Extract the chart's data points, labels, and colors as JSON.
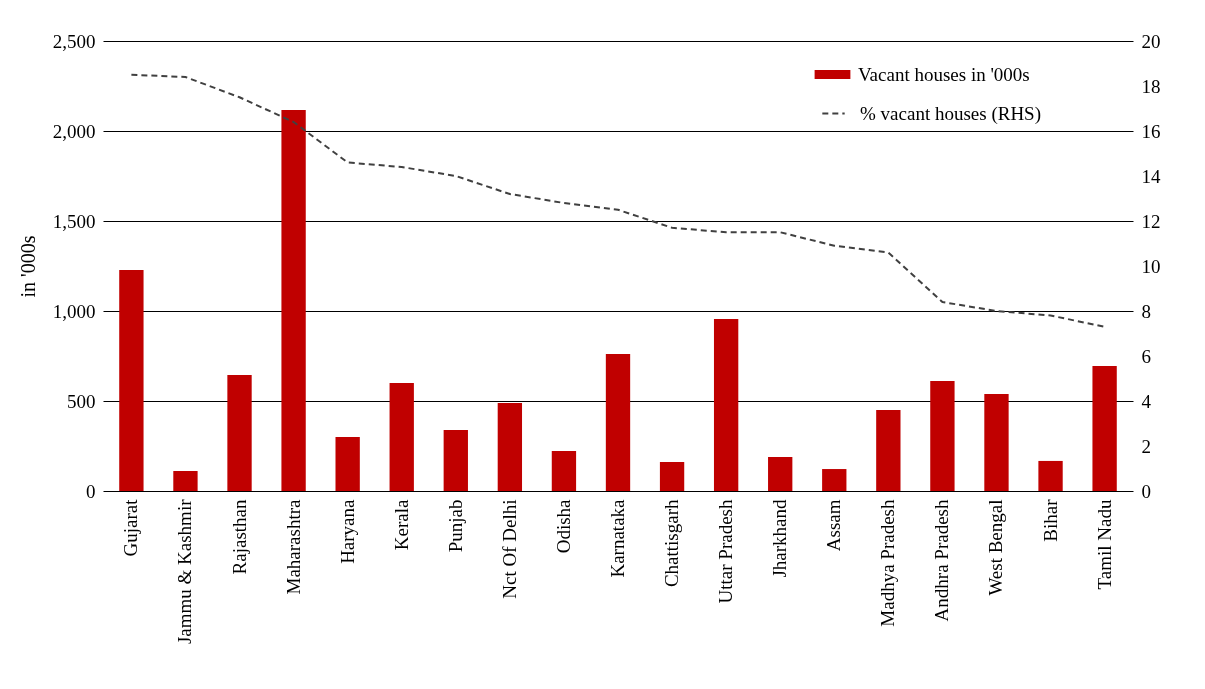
{
  "chart_data": {
    "type": "bar",
    "ylabel": "in '000s",
    "categories": [
      "Gujarat",
      "Jammu & Kashmir",
      "Rajasthan",
      "Maharashtra",
      "Haryana",
      "Kerala",
      "Punjab",
      "Nct Of Delhi",
      "Odisha",
      "Karnataka",
      "Chattisgarh",
      "Uttar Pradesh",
      "Jharkhand",
      "Assam",
      "Madhya Pradesh",
      "Andhra Pradesh",
      "West Bengal",
      "Bihar",
      "Tamil Nadu"
    ],
    "series": [
      {
        "name": "Vacant houses in '000s",
        "type": "bar",
        "color": "#c00000",
        "values": [
          1228,
          111,
          644,
          2117,
          300,
          600,
          339,
          489,
          222,
          761,
          161,
          956,
          189,
          122,
          450,
          611,
          539,
          167,
          694
        ]
      },
      {
        "name": "% vacant houses (RHS)",
        "type": "line",
        "axis": "y2",
        "color": "#404040",
        "line_style": "dashed",
        "values": [
          18.5,
          18.4,
          17.5,
          16.4,
          14.6,
          14.4,
          14.0,
          13.2,
          12.8,
          12.5,
          11.7,
          11.5,
          11.5,
          10.9,
          10.6,
          8.4,
          8.0,
          7.8,
          7.3
        ]
      }
    ],
    "ylim": [
      0,
      2500
    ],
    "yticks": [
      0,
      500,
      {
        "value": 1000,
        "label": "1,000"
      },
      {
        "value": 1500,
        "label": "1,500"
      },
      {
        "value": 2000,
        "label": "2,000"
      },
      {
        "value": 2500,
        "label": "2,500"
      }
    ],
    "y2lim": [
      0,
      20
    ],
    "y2ticks": [
      0,
      2,
      4,
      6,
      8,
      10,
      12,
      14,
      16,
      18,
      20
    ],
    "grid": "y",
    "legend": "top right"
  }
}
